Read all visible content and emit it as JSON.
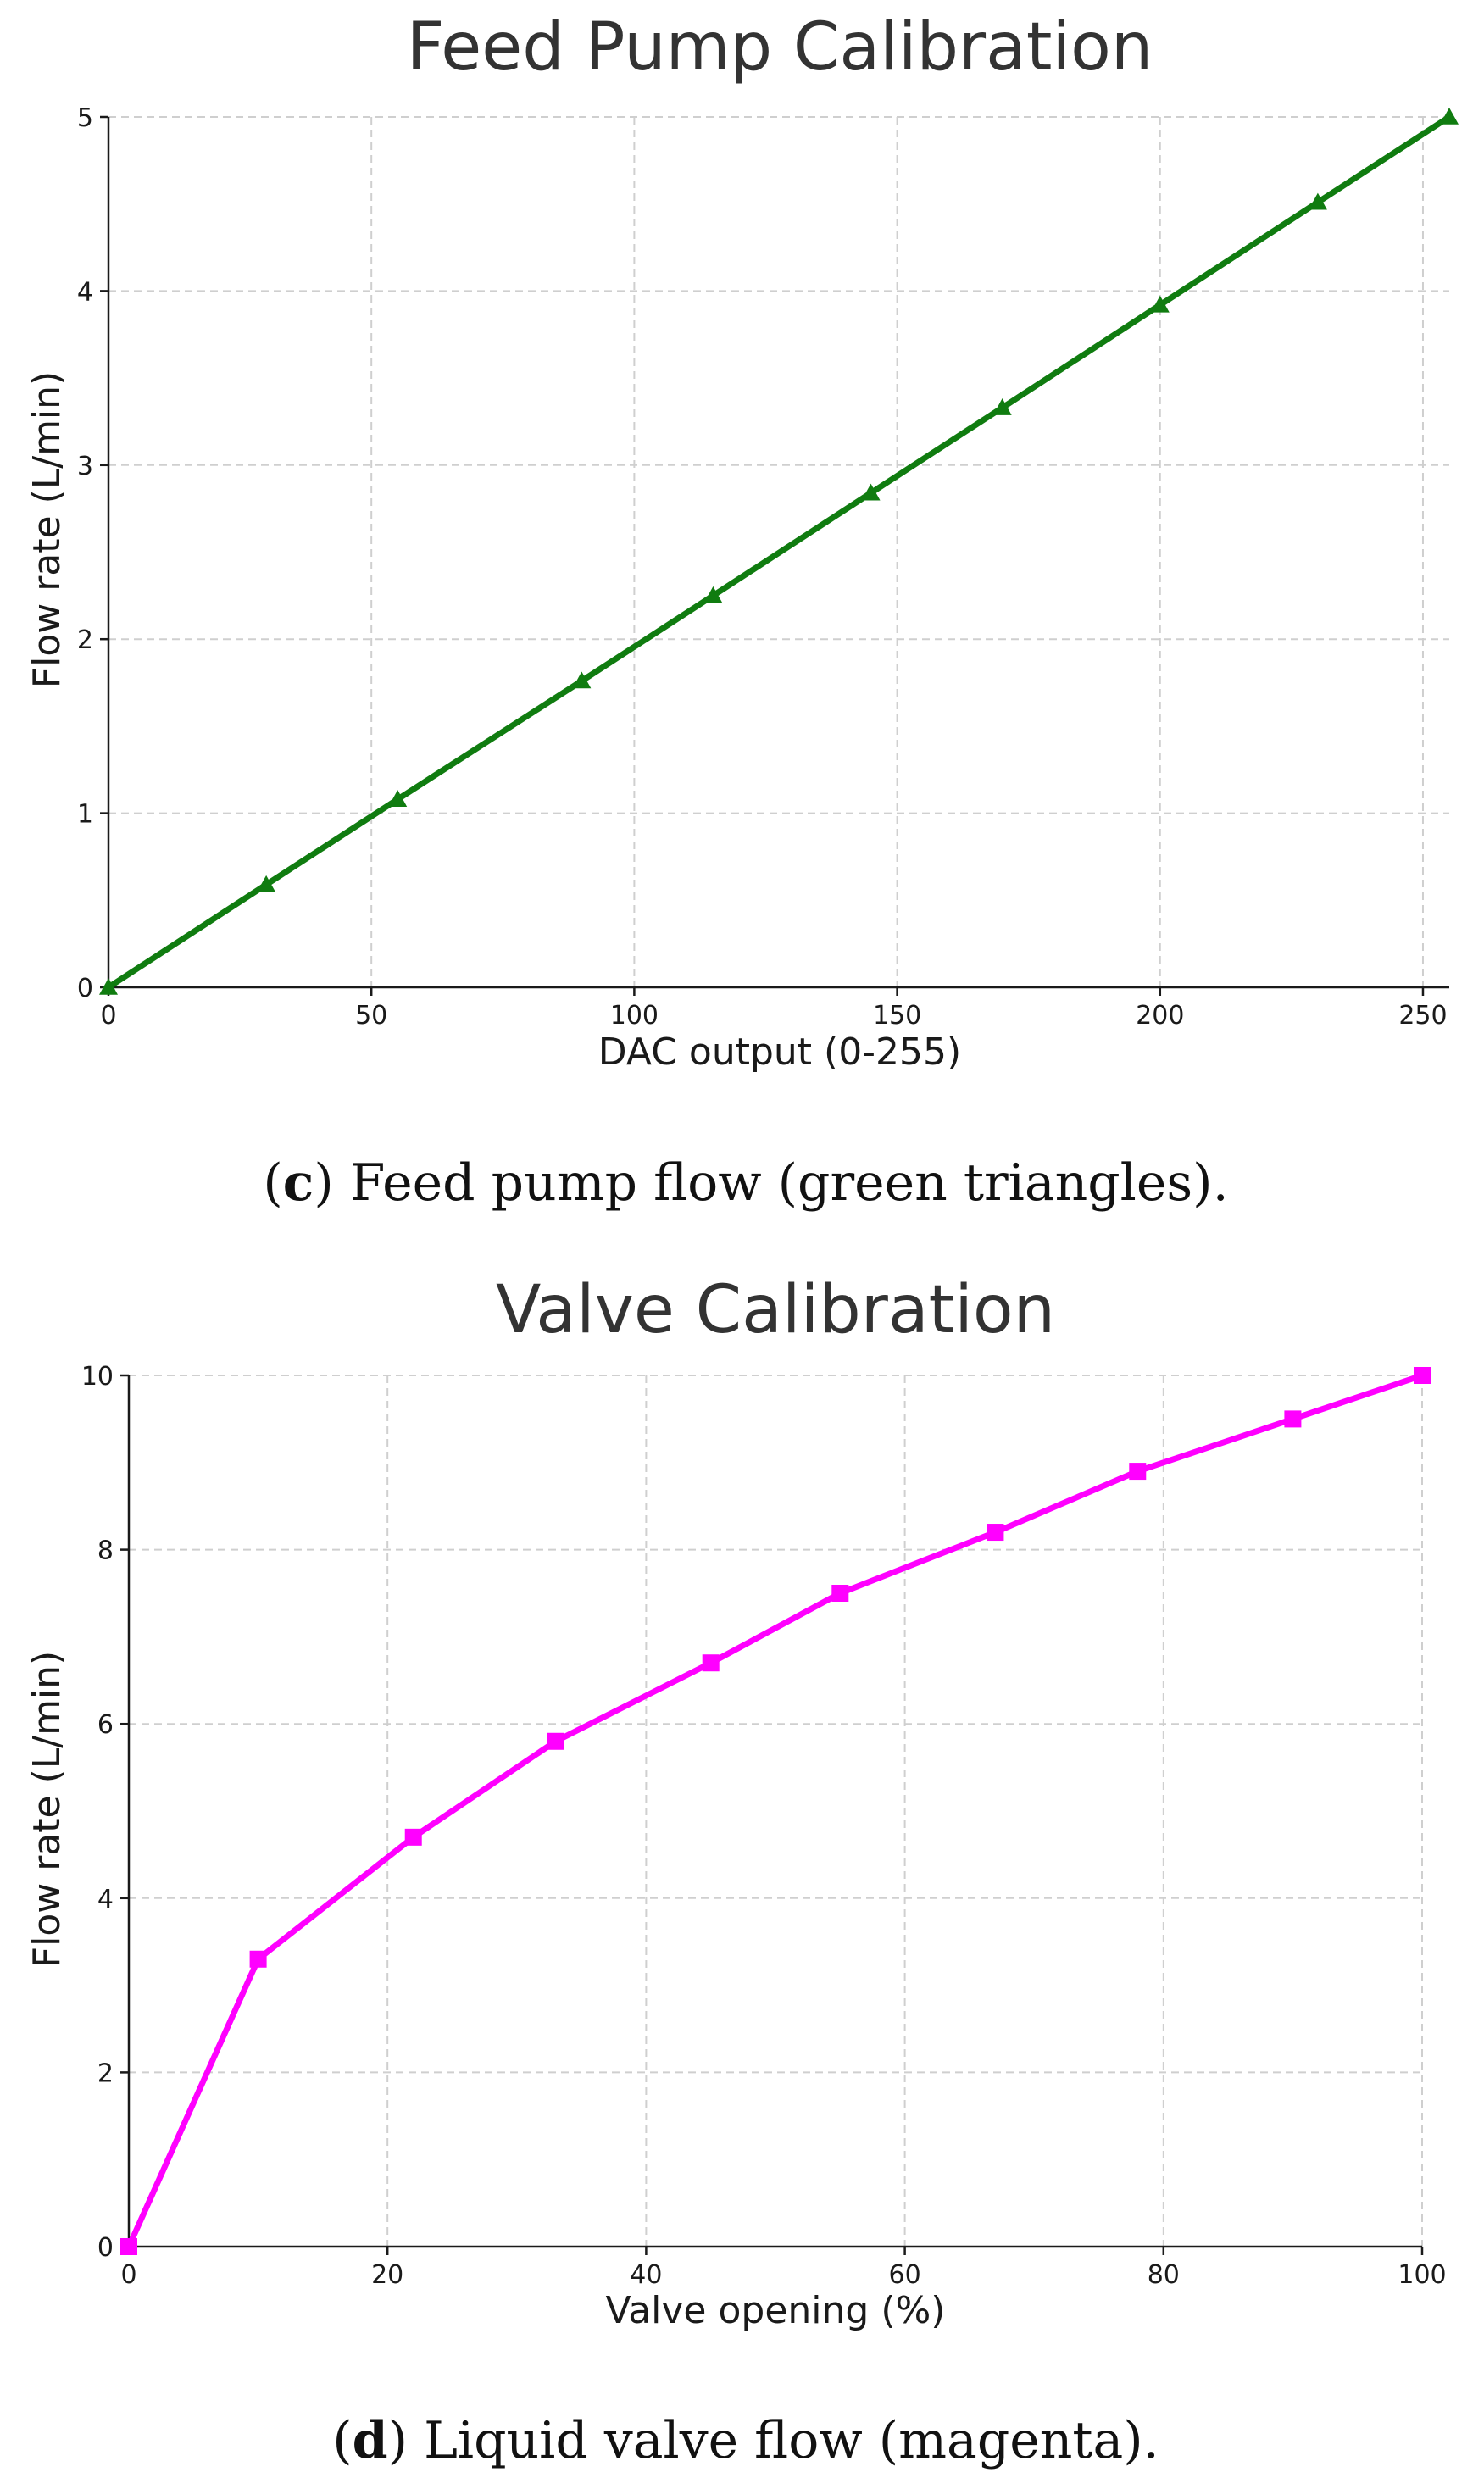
{
  "chart_data": [
    {
      "type": "line",
      "title": "Feed Pump Calibration",
      "xlabel": "DAC output (0-255)",
      "ylabel": "Flow rate (L/min)",
      "xlim": [
        0,
        255
      ],
      "ylim": [
        0,
        5
      ],
      "xticks": [
        0,
        50,
        100,
        150,
        200,
        250
      ],
      "yticks": [
        0,
        1,
        2,
        3,
        4,
        5
      ],
      "grid": true,
      "series": [
        {
          "name": "Feed pump flow",
          "color": "#107c10",
          "marker": "triangle",
          "x": [
            0,
            30,
            55,
            90,
            115,
            145,
            170,
            200,
            230,
            255
          ],
          "values": [
            0,
            0.59,
            1.08,
            1.76,
            2.25,
            2.84,
            3.33,
            3.92,
            4.51,
            5.0
          ]
        }
      ],
      "caption": {
        "label": "c",
        "text": ") Feed pump flow (green triangles)."
      }
    },
    {
      "type": "line",
      "title": "Valve Calibration",
      "xlabel": "Valve opening (%)",
      "ylabel": "Flow rate (L/min)",
      "xlim": [
        0,
        100
      ],
      "ylim": [
        0,
        10
      ],
      "xticks": [
        0,
        20,
        40,
        60,
        80,
        100
      ],
      "yticks": [
        0,
        2,
        4,
        6,
        8,
        10
      ],
      "grid": true,
      "series": [
        {
          "name": "Liquid valve flow",
          "color": "#ff00ff",
          "marker": "square",
          "x": [
            0,
            10,
            22,
            33,
            45,
            55,
            67,
            78,
            90,
            100
          ],
          "values": [
            0,
            3.3,
            4.7,
            5.8,
            6.7,
            7.5,
            8.2,
            8.9,
            9.5,
            10.0
          ]
        }
      ],
      "caption": {
        "label": "d",
        "text": ") Liquid valve flow (magenta)."
      }
    }
  ]
}
